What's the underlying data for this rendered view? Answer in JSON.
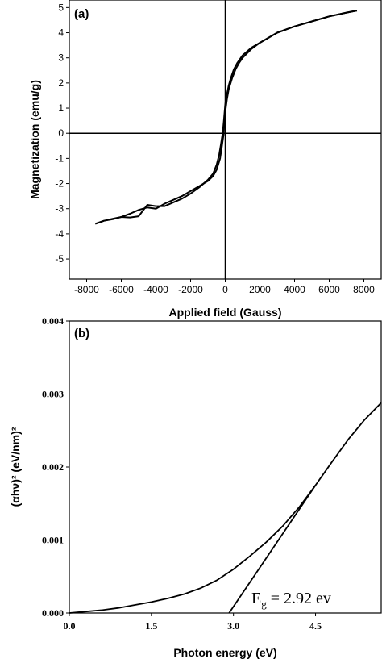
{
  "chart_data": [
    {
      "panel_label": "(a)",
      "type": "line",
      "xlabel": "Applied field (Gauss)",
      "ylabel": "Magnetization (emu/g)",
      "xlim": [
        -9000,
        9000
      ],
      "ylim": [
        -5.8,
        5.3
      ],
      "xticks": [
        -8000,
        -6000,
        -4000,
        -2000,
        0,
        2000,
        4000,
        6000,
        8000
      ],
      "yticks": [
        5,
        4,
        3,
        2,
        1,
        0,
        -1,
        -2,
        -3,
        -4,
        -5
      ],
      "reference_lines": {
        "x": 0,
        "y": 0
      },
      "series": [
        {
          "x": [
            -7500,
            -7000,
            -6500,
            -6000,
            -5500,
            -5000,
            -4500,
            -4000,
            -3500,
            -3000,
            -2500,
            -2000,
            -1500,
            -1000,
            -700,
            -500,
            -350,
            -250,
            -150,
            -80,
            0,
            100,
            200,
            300,
            400,
            500,
            700,
            1000,
            1500,
            2000,
            3000,
            4000,
            5000,
            6000,
            7000,
            7600
          ],
          "y": [
            -3.6,
            -3.48,
            -3.42,
            -3.33,
            -3.35,
            -3.3,
            -2.85,
            -2.9,
            -2.9,
            -2.75,
            -2.6,
            -2.4,
            -2.15,
            -1.85,
            -1.6,
            -1.25,
            -0.85,
            -0.45,
            0,
            0.5,
            1.15,
            1.55,
            1.9,
            2.15,
            2.35,
            2.55,
            2.8,
            3.1,
            3.4,
            3.6,
            4.0,
            4.25,
            4.45,
            4.65,
            4.8,
            4.88
          ]
        },
        {
          "x": [
            -7500,
            -7000,
            -6500,
            -6000,
            -5500,
            -5000,
            -4500,
            -4000,
            -3500,
            -3000,
            -2500,
            -2000,
            -1500,
            -1000,
            -700,
            -500,
            -300,
            -200,
            -100,
            -50,
            0,
            100,
            200,
            400,
            600,
            800,
            1000,
            1500,
            2000,
            3000,
            4000,
            5000,
            6000,
            7000,
            7600
          ],
          "y": [
            -3.6,
            -3.48,
            -3.4,
            -3.33,
            -3.2,
            -3.05,
            -2.95,
            -3.0,
            -2.8,
            -2.65,
            -2.5,
            -2.3,
            -2.1,
            -1.9,
            -1.7,
            -1.45,
            -1.0,
            -0.55,
            -0.05,
            0.4,
            0.85,
            1.35,
            1.75,
            2.2,
            2.55,
            2.8,
            3.0,
            3.35,
            3.6,
            4.0,
            4.25,
            4.45,
            4.65,
            4.8,
            4.88
          ]
        }
      ]
    },
    {
      "panel_label": "(b)",
      "type": "line",
      "xlabel": "Photon energy (eV)",
      "ylabel": "(αhν)² (eV/nm)²",
      "xlim": [
        0,
        5.7
      ],
      "ylim": [
        0,
        0.004
      ],
      "xticks": [
        "0.0",
        "1.5",
        "3.0",
        "4.5"
      ],
      "yticks": [
        "0.000",
        "0.001",
        "0.002",
        "0.003",
        "0.004"
      ],
      "annotation": {
        "text": "E",
        "subscript": "g",
        "suffix": " = 2.92 ev"
      },
      "series": [
        {
          "x": [
            0.0,
            0.3,
            0.6,
            0.9,
            1.2,
            1.5,
            1.8,
            2.1,
            2.4,
            2.7,
            3.0,
            3.3,
            3.6,
            3.9,
            4.2,
            4.5,
            4.8,
            5.1,
            5.4,
            5.7
          ],
          "y": [
            0.0,
            2e-05,
            4e-05,
            7e-05,
            0.00011,
            0.00015,
            0.0002,
            0.00026,
            0.00034,
            0.00045,
            0.0006,
            0.00078,
            0.00097,
            0.00119,
            0.00145,
            0.00175,
            0.00207,
            0.00238,
            0.00265,
            0.00288
          ]
        },
        {
          "x": [
            2.92,
            4.5
          ],
          "y": [
            0.0,
            0.00175
          ]
        }
      ]
    }
  ]
}
